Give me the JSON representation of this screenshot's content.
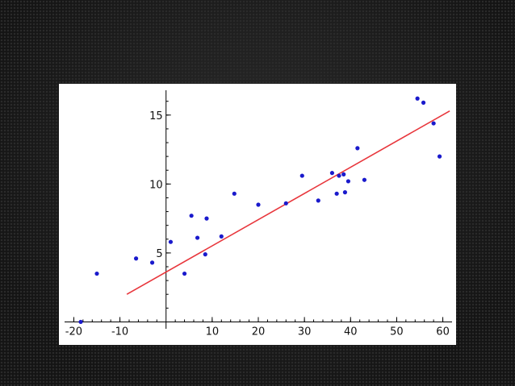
{
  "chart_data": {
    "type": "scatter",
    "title": "",
    "xlabel": "",
    "ylabel": "",
    "xlim": [
      -22,
      62
    ],
    "ylim": [
      -0.5,
      16.8
    ],
    "xticks": [
      -20,
      -10,
      10,
      20,
      30,
      40,
      50,
      60
    ],
    "yticks": [
      5,
      10,
      15
    ],
    "grid": false,
    "colors": {
      "points": "#1a1acc",
      "fit_line": "#e8363c",
      "axes": "#000000"
    },
    "points": [
      {
        "x": -18.5,
        "y": 0.0
      },
      {
        "x": -15.0,
        "y": 3.5
      },
      {
        "x": -6.5,
        "y": 4.6
      },
      {
        "x": -3.0,
        "y": 4.3
      },
      {
        "x": 1.0,
        "y": 5.8
      },
      {
        "x": 4.0,
        "y": 3.5
      },
      {
        "x": 5.5,
        "y": 7.7
      },
      {
        "x": 6.8,
        "y": 6.1
      },
      {
        "x": 8.5,
        "y": 4.9
      },
      {
        "x": 8.8,
        "y": 7.5
      },
      {
        "x": 12.0,
        "y": 6.2
      },
      {
        "x": 14.8,
        "y": 9.3
      },
      {
        "x": 20.0,
        "y": 8.5
      },
      {
        "x": 26.0,
        "y": 8.6
      },
      {
        "x": 29.5,
        "y": 10.6
      },
      {
        "x": 33.0,
        "y": 8.8
      },
      {
        "x": 36.0,
        "y": 10.8
      },
      {
        "x": 37.0,
        "y": 9.3
      },
      {
        "x": 37.5,
        "y": 10.6
      },
      {
        "x": 38.5,
        "y": 10.7
      },
      {
        "x": 38.8,
        "y": 9.4
      },
      {
        "x": 39.5,
        "y": 10.2
      },
      {
        "x": 41.5,
        "y": 12.6
      },
      {
        "x": 43.0,
        "y": 10.3
      },
      {
        "x": 54.5,
        "y": 16.2
      },
      {
        "x": 55.8,
        "y": 15.9
      },
      {
        "x": 58.0,
        "y": 14.4
      },
      {
        "x": 59.3,
        "y": 12.0
      }
    ],
    "fit_line": {
      "x": [
        -8.5,
        61.5
      ],
      "y": [
        2.0,
        15.3
      ]
    }
  }
}
